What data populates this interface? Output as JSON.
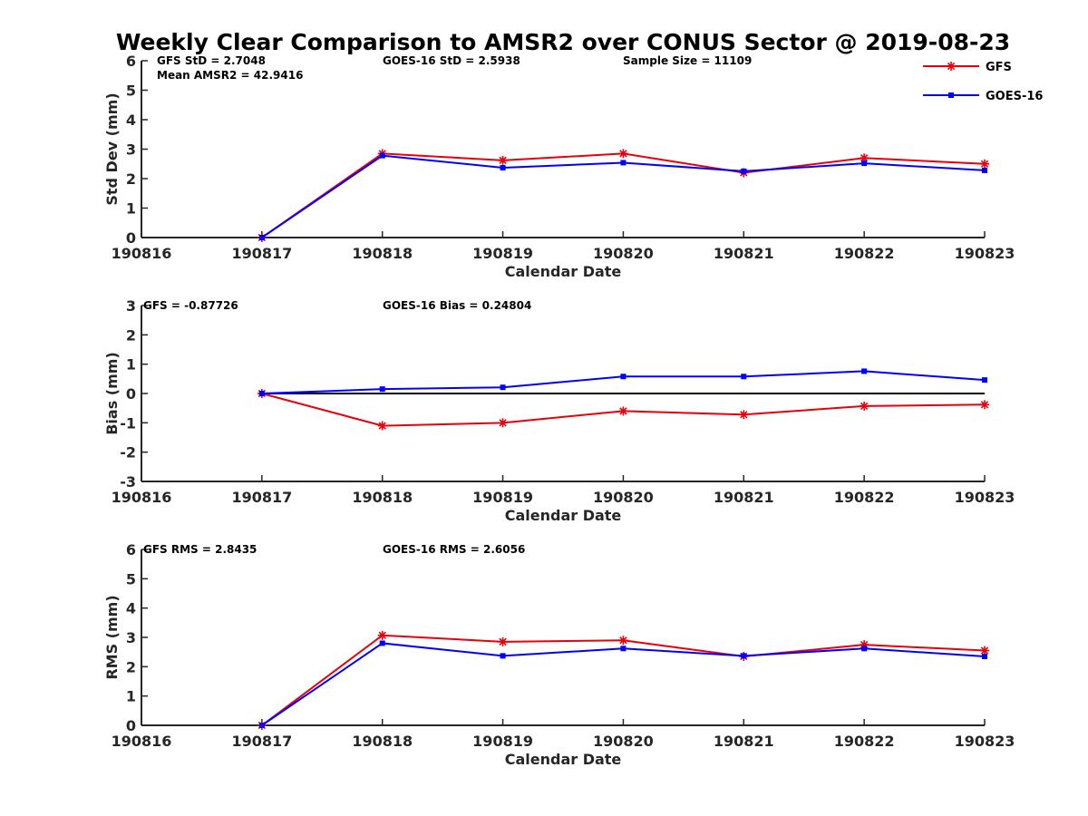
{
  "chart_data": {
    "title": "Weekly Clear Comparison to AMSR2 over CONUS Sector @ 2019-08-23",
    "x_categories": [
      "190816",
      "190817",
      "190818",
      "190819",
      "190820",
      "190821",
      "190822",
      "190823"
    ],
    "legend": {
      "placement": "top-right",
      "entries": [
        {
          "name": "GFS",
          "color": "#e8000b",
          "marker": "asterisk"
        },
        {
          "name": "GOES-16",
          "color": "#0000ff",
          "marker": "square"
        }
      ]
    },
    "panels": [
      {
        "type": "line",
        "xlabel": "Calendar Date",
        "ylabel": "Std Dev (mm)",
        "ylim": [
          0,
          6
        ],
        "yticks": [
          0,
          1,
          2,
          3,
          4,
          5,
          6
        ],
        "annotations": {
          "a1": "GFS StD = 2.7048",
          "a2": "Mean AMSR2 = 42.9416",
          "a3": "GOES-16 StD = 2.5938",
          "a4": "Sample Size = 11109"
        },
        "series": [
          {
            "name": "GFS",
            "x": [
              "190817",
              "190818",
              "190819",
              "190820",
              "190821",
              "190822",
              "190823"
            ],
            "values": [
              0,
              2.85,
              2.62,
              2.85,
              2.2,
              2.7,
              2.5
            ]
          },
          {
            "name": "GOES-16",
            "x": [
              "190817",
              "190818",
              "190819",
              "190820",
              "190821",
              "190822",
              "190823"
            ],
            "values": [
              0,
              2.78,
              2.37,
              2.54,
              2.25,
              2.52,
              2.28
            ]
          }
        ]
      },
      {
        "type": "line",
        "xlabel": "Calendar Date",
        "ylabel": "Bias (mm)",
        "ylim": [
          -3,
          3
        ],
        "yticks": [
          -3,
          -2,
          -1,
          0,
          1,
          2,
          3
        ],
        "zero_line": true,
        "annotations": {
          "a1": "GFS = -0.87726",
          "a3": "GOES-16 Bias  = 0.24804"
        },
        "series": [
          {
            "name": "GFS",
            "x": [
              "190817",
              "190818",
              "190819",
              "190820",
              "190821",
              "190822",
              "190823"
            ],
            "values": [
              0,
              -1.1,
              -1.0,
              -0.6,
              -0.72,
              -0.43,
              -0.38
            ]
          },
          {
            "name": "GOES-16",
            "x": [
              "190817",
              "190818",
              "190819",
              "190820",
              "190821",
              "190822",
              "190823"
            ],
            "values": [
              0,
              0.15,
              0.21,
              0.58,
              0.58,
              0.76,
              0.46
            ]
          }
        ]
      },
      {
        "type": "line",
        "xlabel": "Calendar Date",
        "ylabel": "RMS (mm)",
        "ylim": [
          0,
          6
        ],
        "yticks": [
          0,
          1,
          2,
          3,
          4,
          5,
          6
        ],
        "annotations": {
          "a1": "GFS RMS = 2.8435",
          "a3": "GOES-16 RMS = 2.6056"
        },
        "series": [
          {
            "name": "GFS",
            "x": [
              "190817",
              "190818",
              "190819",
              "190820",
              "190821",
              "190822",
              "190823"
            ],
            "values": [
              0,
              3.07,
              2.85,
              2.9,
              2.35,
              2.75,
              2.55
            ]
          },
          {
            "name": "GOES-16",
            "x": [
              "190817",
              "190818",
              "190819",
              "190820",
              "190821",
              "190822",
              "190823"
            ],
            "values": [
              0,
              2.8,
              2.37,
              2.62,
              2.37,
              2.62,
              2.35
            ]
          }
        ]
      }
    ]
  }
}
